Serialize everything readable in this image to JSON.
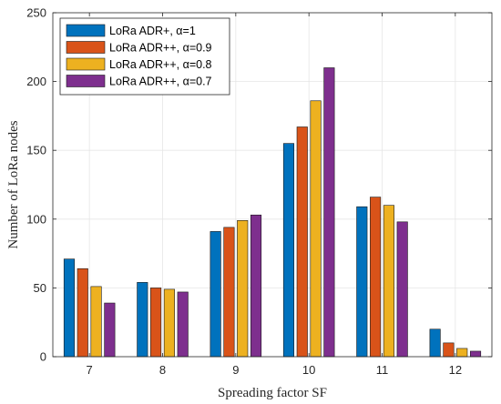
{
  "chart_data": {
    "type": "bar",
    "categories": [
      "7",
      "8",
      "9",
      "10",
      "11",
      "12"
    ],
    "series": [
      {
        "name": "LoRa ADR+, α=1",
        "color": "#0072BD",
        "values": [
          71,
          54,
          91,
          155,
          109,
          20
        ]
      },
      {
        "name": "LoRa ADR++, α=0.9",
        "color": "#D95319",
        "values": [
          64,
          50,
          94,
          167,
          116,
          10
        ]
      },
      {
        "name": "LoRa ADR++, α=0.8",
        "color": "#EDB120",
        "values": [
          51,
          49,
          99,
          186,
          110,
          6
        ]
      },
      {
        "name": "LoRa ADR++, α=0.7",
        "color": "#7E2F8E",
        "values": [
          39,
          47,
          103,
          210,
          98,
          4
        ]
      }
    ],
    "title": "",
    "xlabel": "Spreading factor SF",
    "ylabel": "Number of LoRa nodes",
    "ylim": [
      0,
      250
    ],
    "yticks": [
      "0",
      "50",
      "100",
      "150",
      "200",
      "250"
    ],
    "grid": true,
    "legend_position": "top-left"
  }
}
